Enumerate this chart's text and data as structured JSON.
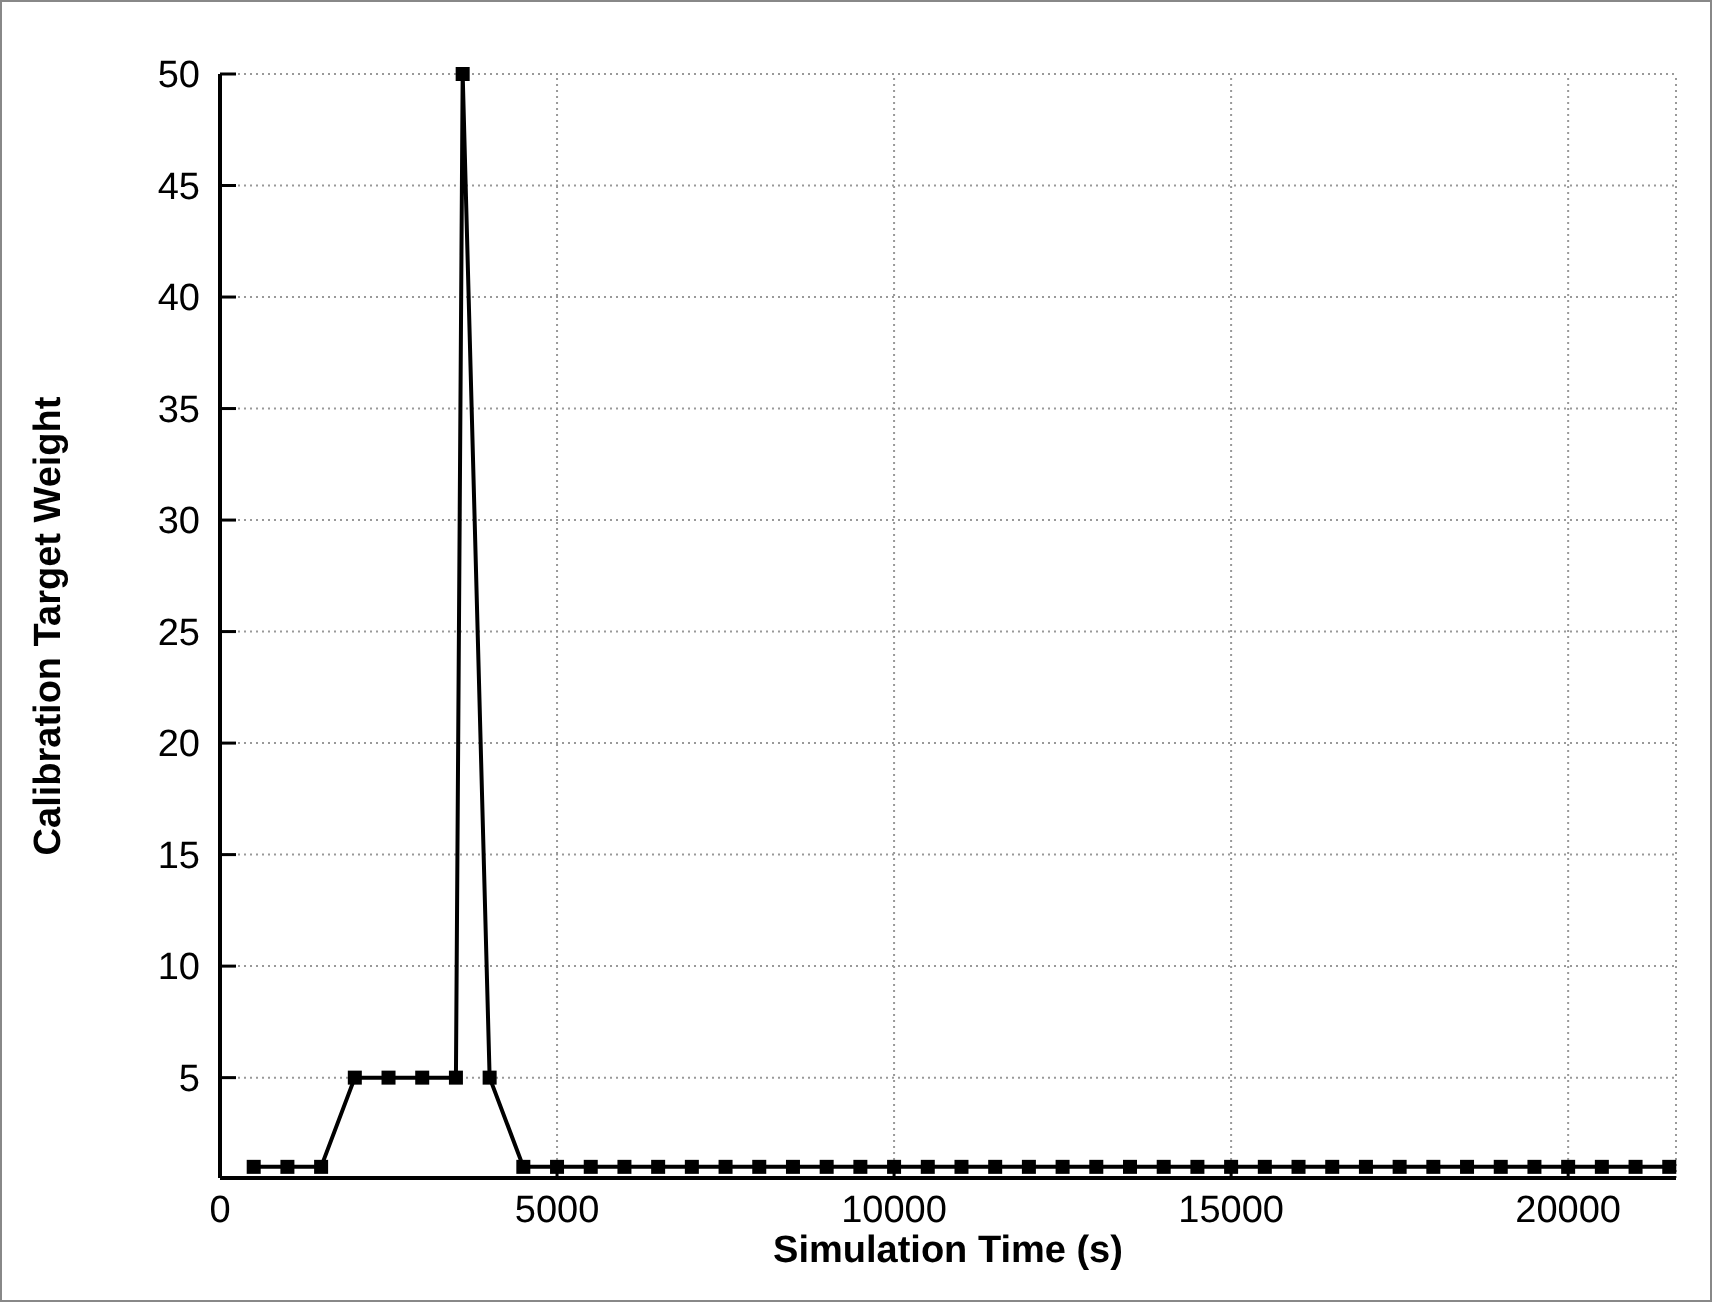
{
  "chart_data": {
    "type": "line",
    "xlabel": "Simulation Time (s)",
    "ylabel": "Calibration Target Weight",
    "x": [
      500,
      1000,
      1500,
      2000,
      2500,
      3000,
      3500,
      3600,
      4000,
      4500,
      5000,
      5500,
      6000,
      6500,
      7000,
      7500,
      8000,
      8500,
      9000,
      9500,
      10000,
      10500,
      11000,
      11500,
      12000,
      12500,
      13000,
      13500,
      14000,
      14500,
      15000,
      15500,
      16000,
      16500,
      17000,
      17500,
      18000,
      18500,
      19000,
      19500,
      20000,
      20500,
      21000,
      21500
    ],
    "series": [
      {
        "color": "#000000",
        "values": [
          1,
          1,
          1,
          5,
          5,
          5,
          5,
          50,
          5,
          1,
          1,
          1,
          1,
          1,
          1,
          1,
          1,
          1,
          1,
          1,
          1,
          1,
          1,
          1,
          1,
          1,
          1,
          1,
          1,
          1,
          1,
          1,
          1,
          1,
          1,
          1,
          1,
          1,
          1,
          1,
          1,
          1,
          1,
          1
        ]
      }
    ],
    "xlim": [
      0,
      21600
    ],
    "ylim": [
      0.5,
      50
    ],
    "xticks": [
      0,
      5000,
      10000,
      15000,
      20000
    ],
    "yticks": [
      5,
      10,
      15,
      20,
      25,
      30,
      35,
      40,
      45,
      50
    ],
    "grid": true,
    "marker": "square",
    "line_style": "solid"
  }
}
